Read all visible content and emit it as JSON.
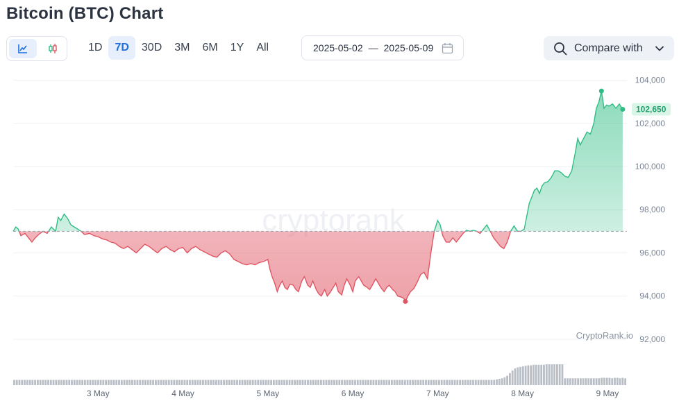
{
  "header": {
    "title": "Bitcoin (BTC) Chart"
  },
  "chart_type_toggle": {
    "options": [
      {
        "icon": "line-chart-icon",
        "active": true
      },
      {
        "icon": "candlestick-icon",
        "active": false
      }
    ]
  },
  "ranges": [
    {
      "label": "1D",
      "active": false
    },
    {
      "label": "7D",
      "active": true
    },
    {
      "label": "30D",
      "active": false
    },
    {
      "label": "3M",
      "active": false
    },
    {
      "label": "6M",
      "active": false
    },
    {
      "label": "1Y",
      "active": false
    },
    {
      "label": "All",
      "active": false
    }
  ],
  "date_range": {
    "start": "2025-05-02",
    "separator": "—",
    "end": "2025-05-09",
    "icon": "calendar-icon"
  },
  "compare": {
    "label": "Compare with",
    "icon": "search-icon",
    "chevron": "chevron-down-icon"
  },
  "colors": {
    "up_line": "#2ebd85",
    "down_line": "#e05563",
    "accent": "#1d6fe0",
    "badge_bg": "#d9f5e8",
    "volume": "#b9bec6"
  },
  "chart_data": {
    "type": "area",
    "title": "Bitcoin (BTC) Chart",
    "watermark": "cryptorank",
    "source_label": "CryptoRank.io",
    "current_price_label": "102,650",
    "baseline": 97000,
    "ylim": [
      91000,
      104500
    ],
    "y_ticks": [
      92000,
      94000,
      96000,
      98000,
      100000,
      102000,
      104000
    ],
    "y_tick_labels": [
      "92,000",
      "94,000",
      "96,000",
      "98,000",
      "100,000",
      "102,000",
      "104,000"
    ],
    "x_ticks": [
      {
        "t": 1.0,
        "label": "3 May"
      },
      {
        "t": 2.0,
        "label": "4 May"
      },
      {
        "t": 3.0,
        "label": "5 May"
      },
      {
        "t": 4.0,
        "label": "6 May"
      },
      {
        "t": 5.0,
        "label": "7 May"
      },
      {
        "t": 6.0,
        "label": "8 May"
      },
      {
        "t": 7.0,
        "label": "9 May"
      }
    ],
    "x_range_days": [
      0,
      7.23
    ],
    "series": [
      {
        "points": [
          [
            0.0,
            97000
          ],
          [
            0.03,
            97200
          ],
          [
            0.06,
            97100
          ],
          [
            0.09,
            96800
          ],
          [
            0.14,
            96900
          ],
          [
            0.18,
            96700
          ],
          [
            0.22,
            96500
          ],
          [
            0.26,
            96700
          ],
          [
            0.3,
            96850
          ],
          [
            0.35,
            97000
          ],
          [
            0.4,
            96900
          ],
          [
            0.45,
            97200
          ],
          [
            0.5,
            97000
          ],
          [
            0.53,
            97650
          ],
          [
            0.56,
            97500
          ],
          [
            0.6,
            97800
          ],
          [
            0.64,
            97600
          ],
          [
            0.68,
            97300
          ],
          [
            0.72,
            97200
          ],
          [
            0.76,
            97100
          ],
          [
            0.8,
            97000
          ],
          [
            0.84,
            96850
          ],
          [
            0.9,
            96900
          ],
          [
            0.95,
            96800
          ],
          [
            1.0,
            96750
          ],
          [
            1.05,
            96650
          ],
          [
            1.1,
            96600
          ],
          [
            1.15,
            96500
          ],
          [
            1.2,
            96450
          ],
          [
            1.25,
            96300
          ],
          [
            1.3,
            96200
          ],
          [
            1.35,
            96300
          ],
          [
            1.4,
            96150
          ],
          [
            1.45,
            96000
          ],
          [
            1.5,
            96200
          ],
          [
            1.55,
            96400
          ],
          [
            1.6,
            96300
          ],
          [
            1.65,
            96150
          ],
          [
            1.7,
            96000
          ],
          [
            1.75,
            96200
          ],
          [
            1.8,
            96300
          ],
          [
            1.85,
            96150
          ],
          [
            1.9,
            96050
          ],
          [
            1.95,
            96200
          ],
          [
            2.0,
            96250
          ],
          [
            2.05,
            96000
          ],
          [
            2.1,
            96200
          ],
          [
            2.15,
            96300
          ],
          [
            2.2,
            96150
          ],
          [
            2.25,
            96050
          ],
          [
            2.3,
            95950
          ],
          [
            2.35,
            95850
          ],
          [
            2.4,
            95800
          ],
          [
            2.45,
            96000
          ],
          [
            2.5,
            96100
          ],
          [
            2.55,
            95950
          ],
          [
            2.6,
            95700
          ],
          [
            2.65,
            95600
          ],
          [
            2.7,
            95500
          ],
          [
            2.75,
            95450
          ],
          [
            2.8,
            95500
          ],
          [
            2.85,
            95450
          ],
          [
            2.9,
            95550
          ],
          [
            2.95,
            95600
          ],
          [
            3.0,
            95700
          ],
          [
            3.02,
            95300
          ],
          [
            3.05,
            94900
          ],
          [
            3.08,
            94600
          ],
          [
            3.11,
            94200
          ],
          [
            3.14,
            94500
          ],
          [
            3.17,
            94700
          ],
          [
            3.2,
            94400
          ],
          [
            3.23,
            94300
          ],
          [
            3.26,
            94550
          ],
          [
            3.3,
            94500
          ],
          [
            3.33,
            94300
          ],
          [
            3.36,
            94200
          ],
          [
            3.4,
            94700
          ],
          [
            3.43,
            94900
          ],
          [
            3.47,
            94500
          ],
          [
            3.5,
            94400
          ],
          [
            3.53,
            94700
          ],
          [
            3.57,
            94300
          ],
          [
            3.6,
            94100
          ],
          [
            3.63,
            94000
          ],
          [
            3.67,
            94300
          ],
          [
            3.7,
            94000
          ],
          [
            3.73,
            94150
          ],
          [
            3.77,
            94400
          ],
          [
            3.8,
            94600
          ],
          [
            3.83,
            94200
          ],
          [
            3.87,
            94050
          ],
          [
            3.9,
            94500
          ],
          [
            3.93,
            94800
          ],
          [
            3.97,
            94500
          ],
          [
            4.0,
            94200
          ],
          [
            4.03,
            94700
          ],
          [
            4.07,
            94900
          ],
          [
            4.1,
            94700
          ],
          [
            4.13,
            94500
          ],
          [
            4.17,
            94400
          ],
          [
            4.2,
            94300
          ],
          [
            4.23,
            94500
          ],
          [
            4.27,
            94800
          ],
          [
            4.3,
            94600
          ],
          [
            4.33,
            94400
          ],
          [
            4.37,
            94200
          ],
          [
            4.4,
            94400
          ],
          [
            4.43,
            94500
          ],
          [
            4.47,
            94300
          ],
          [
            4.5,
            94200
          ],
          [
            4.53,
            94000
          ],
          [
            4.57,
            93950
          ],
          [
            4.6,
            93900
          ],
          [
            4.62,
            93750
          ],
          [
            4.65,
            94000
          ],
          [
            4.68,
            94200
          ],
          [
            4.72,
            94350
          ],
          [
            4.76,
            94650
          ],
          [
            4.8,
            95000
          ],
          [
            4.84,
            95100
          ],
          [
            4.88,
            94800
          ],
          [
            4.92,
            96000
          ],
          [
            4.96,
            97000
          ],
          [
            5.0,
            97500
          ],
          [
            5.03,
            97300
          ],
          [
            5.06,
            96800
          ],
          [
            5.1,
            96500
          ],
          [
            5.14,
            96500
          ],
          [
            5.18,
            96700
          ],
          [
            5.22,
            96500
          ],
          [
            5.26,
            96700
          ],
          [
            5.3,
            96900
          ],
          [
            5.34,
            97050
          ],
          [
            5.38,
            97000
          ],
          [
            5.42,
            97050
          ],
          [
            5.46,
            97000
          ],
          [
            5.5,
            96900
          ],
          [
            5.54,
            97100
          ],
          [
            5.58,
            97300
          ],
          [
            5.62,
            97000
          ],
          [
            5.66,
            96700
          ],
          [
            5.7,
            96500
          ],
          [
            5.74,
            96300
          ],
          [
            5.78,
            96200
          ],
          [
            5.82,
            96500
          ],
          [
            5.86,
            97000
          ],
          [
            5.9,
            97250
          ],
          [
            5.94,
            97000
          ],
          [
            5.98,
            97000
          ],
          [
            6.02,
            97100
          ],
          [
            6.05,
            97700
          ],
          [
            6.08,
            98300
          ],
          [
            6.11,
            98600
          ],
          [
            6.14,
            98900
          ],
          [
            6.17,
            99000
          ],
          [
            6.2,
            98750
          ],
          [
            6.23,
            99100
          ],
          [
            6.26,
            99250
          ],
          [
            6.3,
            99300
          ],
          [
            6.34,
            99500
          ],
          [
            6.38,
            99800
          ],
          [
            6.42,
            99800
          ],
          [
            6.46,
            99700
          ],
          [
            6.5,
            99550
          ],
          [
            6.54,
            99500
          ],
          [
            6.58,
            99800
          ],
          [
            6.62,
            100600
          ],
          [
            6.65,
            101300
          ],
          [
            6.68,
            101000
          ],
          [
            6.72,
            101300
          ],
          [
            6.76,
            101600
          ],
          [
            6.8,
            101500
          ],
          [
            6.84,
            102000
          ],
          [
            6.87,
            102700
          ],
          [
            6.9,
            103000
          ],
          [
            6.93,
            103500
          ],
          [
            6.96,
            102700
          ],
          [
            6.99,
            102850
          ],
          [
            7.02,
            102800
          ],
          [
            7.06,
            102900
          ],
          [
            7.1,
            102700
          ],
          [
            7.14,
            102900
          ],
          [
            7.18,
            102650
          ]
        ]
      }
    ],
    "markers": [
      {
        "type": "high",
        "t": 6.93,
        "value": 103500
      },
      {
        "type": "low",
        "t": 4.62,
        "value": 93750
      },
      {
        "type": "current",
        "t": 7.18,
        "value": 102650
      }
    ],
    "volume": {
      "values": [
        1,
        1,
        1,
        1,
        1,
        1,
        1,
        1,
        1,
        1,
        1,
        1,
        1,
        1,
        1,
        1,
        1,
        1,
        1,
        1,
        1,
        1,
        1,
        1,
        1,
        1,
        1,
        1,
        1,
        1,
        1,
        1,
        1,
        1,
        1,
        1,
        1,
        1,
        1,
        1,
        1,
        1,
        1,
        1,
        1,
        1,
        1,
        1,
        1,
        1,
        1,
        1,
        1,
        1,
        1,
        1,
        1,
        1,
        1,
        1,
        1,
        1,
        1,
        1,
        1,
        1,
        1,
        1,
        1,
        1,
        1,
        1,
        1,
        1,
        1,
        1,
        1,
        1,
        1,
        1,
        1,
        1,
        1,
        1,
        1,
        1,
        1,
        1,
        1,
        1,
        1,
        1,
        1,
        1,
        1,
        1,
        1,
        1,
        1,
        1,
        1,
        1,
        1,
        1,
        1,
        1,
        1,
        1,
        1,
        1,
        1,
        1,
        1,
        1,
        1,
        1,
        1,
        1,
        1,
        1,
        1,
        1,
        1,
        1,
        1,
        1,
        1,
        1,
        1,
        1,
        1,
        1,
        1,
        1,
        1,
        1,
        1,
        1,
        1,
        1,
        1,
        1,
        1,
        1,
        1,
        1,
        1,
        1,
        1,
        1,
        1,
        1,
        1,
        1,
        1,
        1,
        1,
        1,
        1,
        1,
        1,
        1,
        1,
        1,
        1,
        1,
        1,
        1,
        1,
        1,
        1,
        1,
        1,
        1,
        1,
        1,
        1,
        1,
        1,
        1,
        1,
        1,
        1,
        1,
        1.1,
        1.2,
        1.3,
        1.5,
        1.8,
        2.3,
        2.8,
        3.2,
        3.4,
        3.5,
        3.6,
        3.7,
        3.8,
        3.8,
        3.9,
        3.9,
        3.9,
        3.9,
        3.9,
        4.0,
        4.0,
        4.0,
        4.0,
        4.0,
        4.0,
        4.0,
        1.3,
        1.3,
        1.3,
        1.3,
        1.3,
        1.3,
        1.3,
        1.3,
        1.3,
        1.3,
        1.3,
        1.3,
        1.3,
        1.3,
        1.4,
        1.4,
        1.4,
        1.4,
        1.3,
        1.4,
        1.4,
        1.3,
        1.4,
        1.3
      ]
    }
  }
}
